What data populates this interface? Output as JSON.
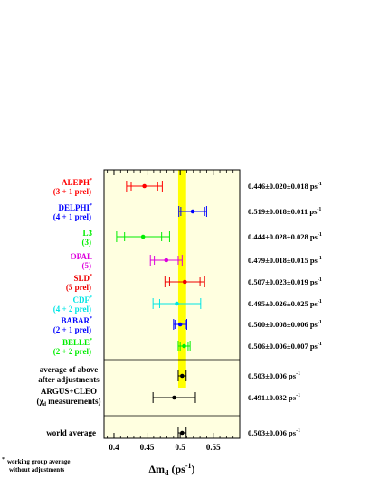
{
  "chart_data": {
    "type": "scatter",
    "xlabel": "Δm",
    "xlabel_sub": "d",
    "xlabel_unit": "(ps",
    "xlabel_unit_sup": "-1",
    "xlabel_unit_close": ")",
    "xlim": [
      0.385,
      0.59
    ],
    "x_ticks": [
      {
        "value": 0.4,
        "label": "0.4"
      },
      {
        "value": 0.45,
        "label": "0.45"
      },
      {
        "value": 0.5,
        "label": "0.5"
      },
      {
        "value": 0.55,
        "label": "0.55"
      }
    ],
    "band": {
      "center": 0.503,
      "error": 0.006,
      "color": "#ffff00"
    },
    "background_color": "#ffffe0",
    "entries": [
      {
        "name": "ALEPH",
        "star": true,
        "sub": "(3 + 1 prel)",
        "color": "#ff0000",
        "value": 0.446,
        "stat": 0.02,
        "total": 0.027,
        "result": "0.446±0.020±0.018 ps",
        "unit_sup": "-1"
      },
      {
        "name": "DELPHI",
        "star": true,
        "sub": "(4 + 1 prel)",
        "color": "#0000ff",
        "value": 0.519,
        "stat": 0.018,
        "total": 0.021,
        "result": "0.519±0.018±0.011 ps",
        "unit_sup": "-1"
      },
      {
        "name": "L3",
        "star": false,
        "sub": "(3)",
        "color": "#00ee00",
        "value": 0.444,
        "stat": 0.028,
        "total": 0.04,
        "result": "0.444±0.028±0.028 ps",
        "unit_sup": "-1"
      },
      {
        "name": "OPAL",
        "star": false,
        "sub": "(5)",
        "color": "#dd00dd",
        "value": 0.479,
        "stat": 0.018,
        "total": 0.024,
        "result": "0.479±0.018±0.015 ps",
        "unit_sup": "-1"
      },
      {
        "name": "SLD",
        "star": true,
        "sub": "(5 prel)",
        "color": "#ee0000",
        "value": 0.507,
        "stat": 0.023,
        "total": 0.03,
        "result": "0.507±0.023±0.019 ps",
        "unit_sup": "-1"
      },
      {
        "name": "CDF",
        "star": true,
        "sub": "(4 + 2 prel)",
        "color": "#00e5e5",
        "value": 0.495,
        "stat": 0.026,
        "total": 0.036,
        "result": "0.495±0.026±0.025 ps",
        "unit_sup": "-1"
      },
      {
        "name": "BABAR",
        "star": true,
        "sub": "(2 + 1 prel)",
        "color": "#0000ff",
        "value": 0.5,
        "stat": 0.008,
        "total": 0.01,
        "result": "0.500±0.008±0.006 ps",
        "unit_sup": "-1"
      },
      {
        "name": "BELLE",
        "star": true,
        "sub": "(2 + 2 prel)",
        "color": "#00ee00",
        "value": 0.506,
        "stat": 0.006,
        "total": 0.009,
        "result": "0.506±0.006±0.007 ps",
        "unit_sup": "-1"
      }
    ],
    "averages": [
      {
        "line1": "average of above",
        "line2": "after adjustments",
        "color": "#000000",
        "value": 0.503,
        "stat": 0.006,
        "total": 0.006,
        "result": "0.503±0.006 ps",
        "unit_sup": "-1"
      },
      {
        "line1": "ARGUS+CLEO",
        "line2_pre": "(χ",
        "line2_sub": "d",
        "line2_post": " measurements)",
        "color": "#000000",
        "value": 0.491,
        "stat": 0.032,
        "total": 0.032,
        "result": "0.491±0.032 ps",
        "unit_sup": "-1"
      }
    ],
    "world": {
      "line1": "world average",
      "color": "#000000",
      "value": 0.503,
      "stat": 0.006,
      "total": 0.006,
      "result": "0.503±0.006 ps",
      "unit_sup": "-1"
    },
    "footnote": [
      "working group average",
      "without adjustments"
    ],
    "footnote_mark": "*"
  }
}
